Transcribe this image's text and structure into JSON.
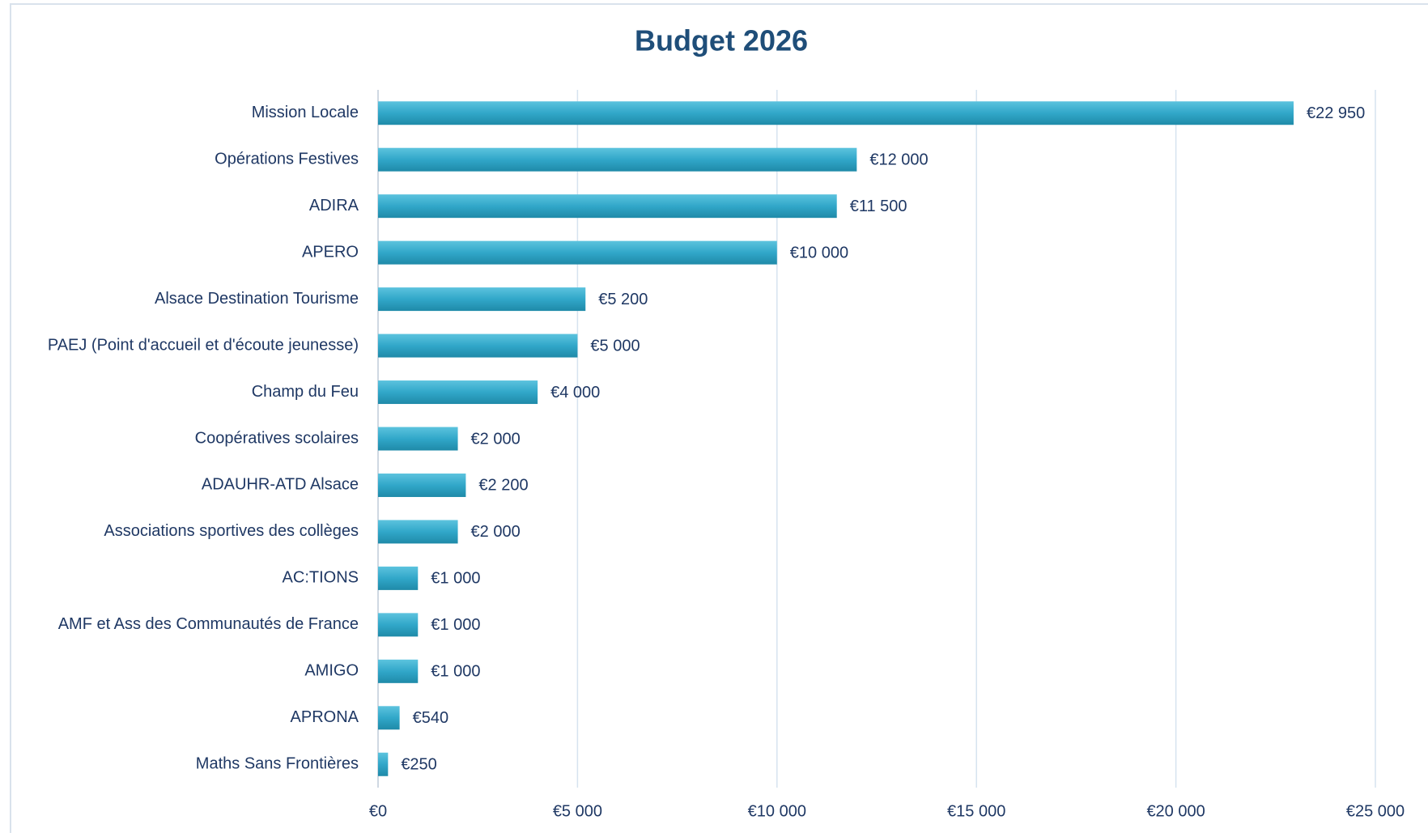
{
  "chart_data": {
    "type": "hbar",
    "title": "Budget 2026",
    "categories": [
      "Mission Locale",
      "Opérations Festives",
      "ADIRA",
      "APERO",
      "Alsace Destination Tourisme",
      "PAEJ (Point d'accueil et d'écoute jeunesse)",
      "Champ du Feu",
      "Coopératives scolaires",
      "ADAUHR-ATD Alsace",
      "Associations sportives des collèges",
      "AC:TIONS",
      "AMF et Ass des Communautés de France",
      "AMIGO",
      "APRONA",
      "Maths Sans Frontières"
    ],
    "values": [
      22950,
      12000,
      11500,
      10000,
      5200,
      5000,
      4000,
      2000,
      2200,
      2000,
      1000,
      1000,
      1000,
      540,
      250
    ],
    "value_labels": [
      "€22 950",
      "€12 000",
      "€11 500",
      "€10 000",
      "€5 200",
      "€5 000",
      "€4 000",
      "€2 000",
      "€2 200",
      "€2 000",
      "€1 000",
      "€1 000",
      "€1 000",
      "€540",
      "€250"
    ],
    "color": "#31a7c9",
    "xlim": [
      0,
      25000
    ],
    "xticks": [
      {
        "value": 0,
        "label": "€0"
      },
      {
        "value": 5000,
        "label": "€5 000"
      },
      {
        "value": 10000,
        "label": "€10 000"
      },
      {
        "value": 15000,
        "label": "€15 000"
      },
      {
        "value": 20000,
        "label": "€20 000"
      },
      {
        "value": 25000,
        "label": "€25 000"
      }
    ],
    "grid": true
  }
}
